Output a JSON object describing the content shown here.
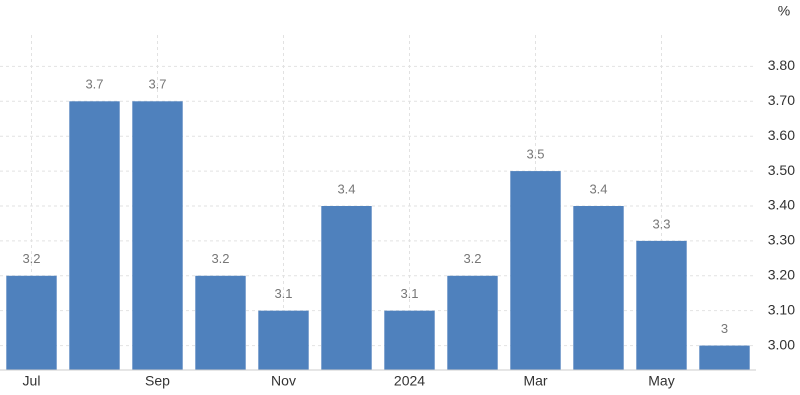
{
  "chart_data": {
    "type": "bar",
    "unit": "%",
    "categories": [
      "Jul",
      null,
      "Sep",
      null,
      "Nov",
      null,
      "2024",
      null,
      "Mar",
      null,
      "May",
      null
    ],
    "values": [
      3.2,
      3.7,
      3.7,
      3.2,
      3.1,
      3.4,
      3.1,
      3.2,
      3.5,
      3.4,
      3.3,
      3
    ],
    "color": "#4f81bd",
    "ylim": [
      2.93,
      3.89
    ],
    "yticks": [
      {
        "value": 3,
        "label": "3.00"
      },
      {
        "value": 3.1,
        "label": "3.10"
      },
      {
        "value": 3.2,
        "label": "3.20"
      },
      {
        "value": 3.3,
        "label": "3.30"
      },
      {
        "value": 3.4,
        "label": "3.40"
      },
      {
        "value": 3.5,
        "label": "3.50"
      },
      {
        "value": 3.6,
        "label": "3.60"
      },
      {
        "value": 3.7,
        "label": "3.70"
      },
      {
        "value": 3.8,
        "label": "3.80"
      }
    ],
    "grid": true
  }
}
